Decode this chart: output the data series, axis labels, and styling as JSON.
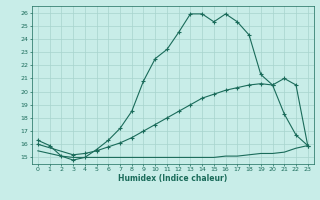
{
  "title": "",
  "xlabel": "Humidex (Indice chaleur)",
  "bg_color": "#c8ede8",
  "line_color": "#1a6b5a",
  "grid_color": "#a8d4ce",
  "xlim": [
    -0.5,
    23.5
  ],
  "ylim": [
    14.5,
    26.5
  ],
  "yticks": [
    15,
    16,
    17,
    18,
    19,
    20,
    21,
    22,
    23,
    24,
    25,
    26
  ],
  "xticks": [
    0,
    1,
    2,
    3,
    4,
    5,
    6,
    7,
    8,
    9,
    10,
    11,
    12,
    13,
    14,
    15,
    16,
    17,
    18,
    19,
    20,
    21,
    22,
    23
  ],
  "curve1_x": [
    0,
    1,
    2,
    3,
    4,
    5,
    6,
    7,
    8,
    9,
    10,
    11,
    12,
    13,
    14,
    15,
    16,
    17,
    18,
    19,
    20,
    21,
    22,
    23
  ],
  "curve1_y": [
    16.3,
    15.9,
    15.1,
    14.8,
    15.0,
    15.6,
    16.3,
    17.2,
    18.5,
    20.8,
    22.5,
    23.2,
    24.5,
    25.9,
    25.9,
    25.3,
    25.9,
    25.3,
    24.3,
    21.3,
    20.5,
    18.3,
    16.7,
    15.9
  ],
  "curve2_x": [
    0,
    3,
    4,
    5,
    6,
    7,
    8,
    9,
    10,
    11,
    12,
    13,
    14,
    15,
    16,
    17,
    18,
    19,
    20,
    21,
    22,
    23
  ],
  "curve2_y": [
    16.0,
    15.2,
    15.3,
    15.5,
    15.8,
    16.1,
    16.5,
    17.0,
    17.5,
    18.0,
    18.5,
    19.0,
    19.5,
    19.8,
    20.1,
    20.3,
    20.5,
    20.6,
    20.5,
    21.0,
    20.5,
    15.9
  ],
  "curve3_x": [
    0,
    1,
    2,
    3,
    4,
    5,
    6,
    7,
    8,
    9,
    10,
    11,
    12,
    13,
    14,
    15,
    16,
    17,
    18,
    19,
    20,
    21,
    22,
    23
  ],
  "curve3_y": [
    15.5,
    15.3,
    15.1,
    15.0,
    15.0,
    15.0,
    15.0,
    15.0,
    15.0,
    15.0,
    15.0,
    15.0,
    15.0,
    15.0,
    15.0,
    15.0,
    15.1,
    15.1,
    15.2,
    15.3,
    15.3,
    15.4,
    15.7,
    15.9
  ]
}
